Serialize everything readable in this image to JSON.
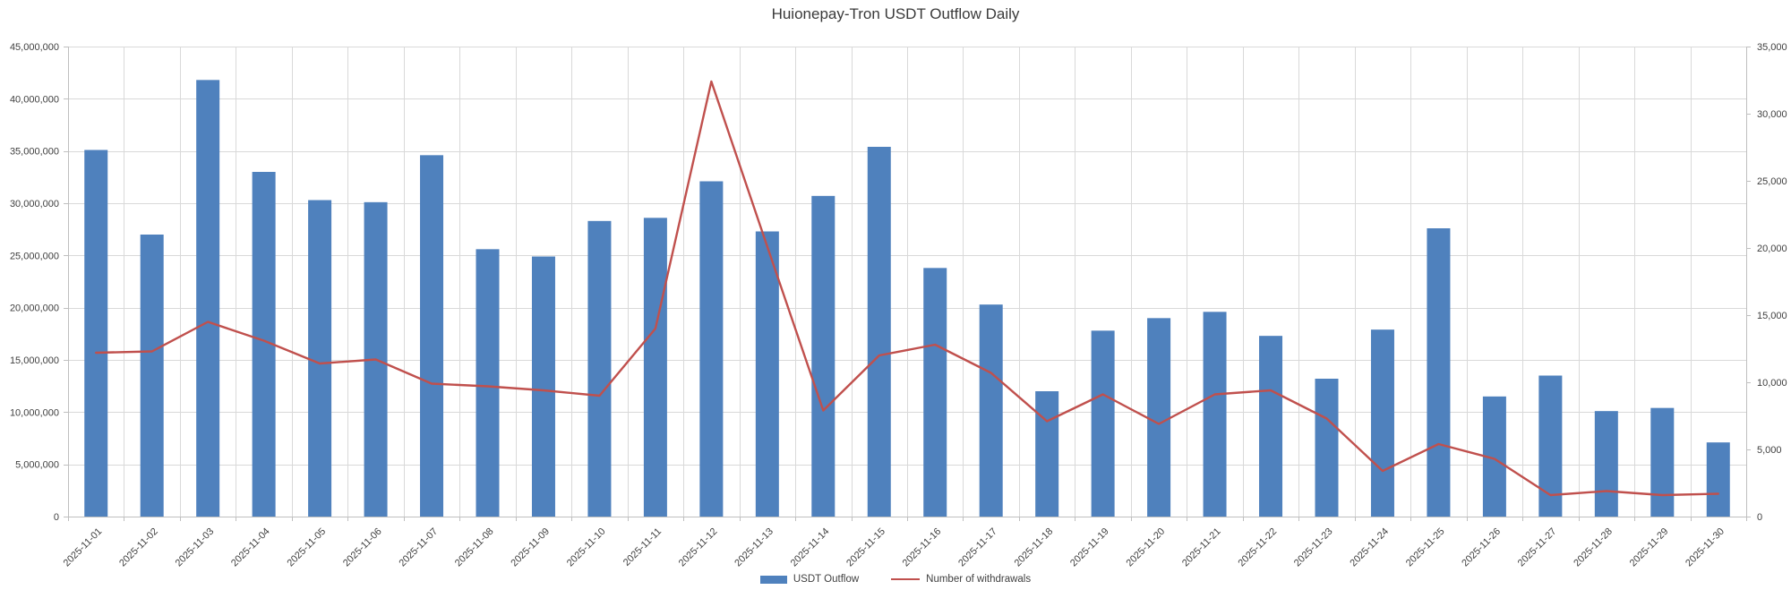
{
  "title": "Huionepay-Tron USDT Outflow Daily",
  "legend": {
    "items": [
      {
        "label": "USDT Outflow",
        "swatch": "bar",
        "color": "#4F81BD"
      },
      {
        "label": "Number of withdrawals",
        "swatch": "line",
        "color": "#C0504D"
      }
    ]
  },
  "axes": {
    "left": {
      "tick_labels": [
        "0",
        "5,000,000",
        "10,000,000",
        "15,000,000",
        "20,000,000",
        "25,000,000",
        "30,000,000",
        "35,000,000",
        "40,000,000",
        "45,000,000"
      ]
    },
    "right": {
      "tick_labels": [
        "0",
        "5,000",
        "10,000",
        "15,000",
        "20,000",
        "25,000",
        "30,000",
        "35,000"
      ]
    }
  },
  "colors": {
    "bar": "#4F81BD",
    "line": "#C0504D",
    "gridline": "#D9D9D9",
    "axis_line": "#BFBFBF",
    "tick_text": "#404040",
    "background": "#FFFFFF"
  },
  "chart_data": {
    "type": "bar",
    "title": "Huionepay-Tron USDT Outflow Daily",
    "xlabel": "",
    "ylabel": "",
    "grid": true,
    "legend_position": "bottom",
    "categories": [
      "2025-11-01",
      "2025-11-02",
      "2025-11-03",
      "2025-11-04",
      "2025-11-05",
      "2025-11-06",
      "2025-11-07",
      "2025-11-08",
      "2025-11-09",
      "2025-11-10",
      "2025-11-11",
      "2025-11-12",
      "2025-11-13",
      "2025-11-14",
      "2025-11-15",
      "2025-11-16",
      "2025-11-17",
      "2025-11-18",
      "2025-11-19",
      "2025-11-20",
      "2025-11-21",
      "2025-11-22",
      "2025-11-23",
      "2025-11-24",
      "2025-11-25",
      "2025-11-26",
      "2025-11-27",
      "2025-11-28",
      "2025-11-29",
      "2025-11-30"
    ],
    "series": [
      {
        "name": "USDT Outflow",
        "type": "bar",
        "axis": "left",
        "color": "#4F81BD",
        "values": [
          35100000,
          27000000,
          41800000,
          33000000,
          30300000,
          30100000,
          34600000,
          25600000,
          24900000,
          28300000,
          28600000,
          32100000,
          27300000,
          30700000,
          35400000,
          23800000,
          20300000,
          12000000,
          17800000,
          19000000,
          19600000,
          17300000,
          13200000,
          17900000,
          27600000,
          11500000,
          13500000,
          10100000,
          10400000,
          7100000
        ]
      },
      {
        "name": "Number of withdrawals",
        "type": "line",
        "axis": "right",
        "color": "#C0504D",
        "values": [
          12200,
          12300,
          14500,
          13100,
          11400,
          11700,
          9900,
          9700,
          9400,
          9000,
          14000,
          32400,
          20100,
          7900,
          12000,
          12800,
          10700,
          7100,
          9100,
          6900,
          9100,
          9400,
          7300,
          3400,
          5400,
          4300,
          1600,
          1900,
          1600,
          1700
        ]
      }
    ],
    "y_left": {
      "min": 0,
      "max": 45000000,
      "step": 5000000
    },
    "y_right": {
      "min": 0,
      "max": 35000,
      "step": 5000
    }
  }
}
